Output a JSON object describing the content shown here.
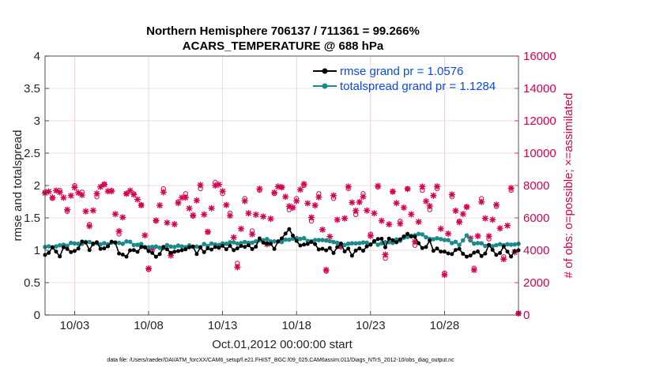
{
  "titles": {
    "line1": "Northern Hemisphere 706137 / 711361 = 99.266%",
    "line2": "ACARS_TEMPERATURE @ 688 hPa"
  },
  "axes": {
    "ylabel_left": "rmse and totalspread",
    "ylabel_right": "# of obs: o=possible; ×=assimilated",
    "xlabel": "Oct.01,2012 00:00:00 start"
  },
  "footer": "data file: /Users/raeder/DAI/ATM_forcXX/CAM6_setup/f.e21.FHIST_BGC.f09_025.CAM6assim.011/Diags_NTrS_2012-10/obs_diag_output.nc",
  "colors": {
    "rmse": "#000000",
    "spread": "#1a8a8a",
    "obs": "#d6004f",
    "legend_text": "#0a4be0",
    "grid": "#e6b8c8"
  },
  "chart_data": {
    "type": "line",
    "title": "Northern Hemisphere 706137 / 711361 = 99.266% / ACARS_TEMPERATURE @ 688 hPa",
    "xlabel": "Oct.01,2012 00:00:00 start",
    "ylabel": "rmse and totalspread",
    "y2label": "# of obs: o=possible; ×=assimilated",
    "x_ticks": [
      "10/03",
      "10/08",
      "10/13",
      "10/18",
      "10/23",
      "10/28"
    ],
    "x_tick_days": [
      3,
      8,
      13,
      18,
      23,
      28
    ],
    "xlim_days": [
      1,
      33
    ],
    "ylim": [
      0,
      4
    ],
    "y_ticks": [
      "0",
      "0.5",
      "1",
      "1.5",
      "2",
      "2.5",
      "3",
      "3.5",
      "4"
    ],
    "y2lim": [
      0,
      16000
    ],
    "y2_ticks": [
      "0",
      "2000",
      "4000",
      "6000",
      "8000",
      "10000",
      "12000",
      "14000",
      "16000"
    ],
    "grid": true,
    "legend_position": "top-right",
    "legend": [
      "rmse grand pr = 1.0576",
      "totalspread grand pr = 1.1284"
    ],
    "series": [
      {
        "name": "rmse grand pr = 1.0576",
        "axis": "left",
        "anchors": [
          [
            1,
            0.9
          ],
          [
            1.5,
            1.0
          ],
          [
            2,
            0.95
          ],
          [
            2.5,
            1.05
          ],
          [
            3,
            1.0
          ],
          [
            3.5,
            1.1
          ],
          [
            4,
            1.05
          ],
          [
            4.5,
            1.1
          ],
          [
            5,
            1.05
          ],
          [
            5.5,
            1.12
          ],
          [
            6,
            1.0
          ],
          [
            6.5,
            0.95
          ],
          [
            7,
            1.05
          ],
          [
            7.5,
            1.0
          ],
          [
            8,
            1.0
          ],
          [
            8.5,
            0.85
          ],
          [
            9,
            1.05
          ],
          [
            9.5,
            0.95
          ],
          [
            10,
            1.0
          ],
          [
            10.5,
            1.05
          ],
          [
            11,
            1.0
          ],
          [
            11.5,
            1.0
          ],
          [
            12,
            1.05
          ],
          [
            12.5,
            1.0
          ],
          [
            13,
            1.05
          ],
          [
            13.5,
            1.1
          ],
          [
            14,
            1.0
          ],
          [
            14.5,
            1.1
          ],
          [
            15,
            1.05
          ],
          [
            15.5,
            1.15
          ],
          [
            16,
            1.1
          ],
          [
            16.5,
            1.0
          ],
          [
            17,
            1.2
          ],
          [
            17.5,
            1.35
          ],
          [
            18,
            1.1
          ],
          [
            18.5,
            1.05
          ],
          [
            19,
            1.1
          ],
          [
            19.5,
            1.05
          ],
          [
            20,
            1.0
          ],
          [
            20.5,
            1.0
          ],
          [
            21,
            1.05
          ],
          [
            21.5,
            1.0
          ],
          [
            22,
            0.95
          ],
          [
            22.5,
            1.0
          ],
          [
            23,
            1.05
          ],
          [
            23.5,
            1.2
          ],
          [
            24,
            1.1
          ],
          [
            24.5,
            1.2
          ],
          [
            25,
            1.15
          ],
          [
            25.5,
            1.3
          ],
          [
            26,
            1.15
          ],
          [
            26.5,
            1.05
          ],
          [
            27,
            1.1
          ],
          [
            27.5,
            1.0
          ],
          [
            28,
            0.95
          ],
          [
            28.5,
            0.9
          ],
          [
            29,
            1.0
          ],
          [
            29.5,
            0.95
          ],
          [
            30,
            1.0
          ],
          [
            30.5,
            0.95
          ],
          [
            31,
            1.05
          ],
          [
            31.5,
            0.95
          ],
          [
            32,
            1.05
          ],
          [
            32.5,
            0.95
          ],
          [
            33,
            1.0
          ]
        ]
      },
      {
        "name": "totalspread grand pr = 1.1284",
        "axis": "left",
        "anchors": [
          [
            1,
            1.05
          ],
          [
            2,
            1.08
          ],
          [
            3,
            1.1
          ],
          [
            4,
            1.12
          ],
          [
            5,
            1.1
          ],
          [
            6,
            1.13
          ],
          [
            7,
            1.1
          ],
          [
            8,
            1.05
          ],
          [
            9,
            1.05
          ],
          [
            10,
            1.07
          ],
          [
            11,
            1.06
          ],
          [
            12,
            1.08
          ],
          [
            13,
            1.1
          ],
          [
            14,
            1.12
          ],
          [
            15,
            1.14
          ],
          [
            16,
            1.15
          ],
          [
            17,
            1.13
          ],
          [
            18,
            1.2
          ],
          [
            19,
            1.15
          ],
          [
            20,
            1.13
          ],
          [
            21,
            1.1
          ],
          [
            22,
            1.12
          ],
          [
            23,
            1.1
          ],
          [
            24,
            1.12
          ],
          [
            25,
            1.15
          ],
          [
            26,
            1.25
          ],
          [
            27,
            1.2
          ],
          [
            28,
            1.15
          ],
          [
            29,
            1.1
          ],
          [
            29.5,
            1.25
          ],
          [
            30,
            1.1
          ],
          [
            31,
            1.08
          ],
          [
            32,
            1.1
          ],
          [
            33,
            1.1
          ]
        ]
      },
      {
        "name": "obs",
        "axis": "right",
        "anchors": [
          [
            1,
            7600
          ],
          [
            1.5,
            7200
          ],
          [
            2,
            7700
          ],
          [
            2.5,
            6400
          ],
          [
            3,
            8000
          ],
          [
            3.5,
            7600
          ],
          [
            4,
            5600
          ],
          [
            4.5,
            7300
          ],
          [
            5,
            8100
          ],
          [
            5.5,
            7700
          ],
          [
            6,
            5000
          ],
          [
            6.5,
            7500
          ],
          [
            7,
            7500
          ],
          [
            7.5,
            6800
          ],
          [
            8,
            2800
          ],
          [
            8.5,
            5800
          ],
          [
            9,
            7800
          ],
          [
            9.5,
            3800
          ],
          [
            10,
            7000
          ],
          [
            10.5,
            7500
          ],
          [
            11,
            6100
          ],
          [
            11.5,
            7800
          ],
          [
            12,
            5100
          ],
          [
            12.5,
            8200
          ],
          [
            13,
            7500
          ],
          [
            13.5,
            6300
          ],
          [
            14,
            3200
          ],
          [
            14.5,
            7200
          ],
          [
            15,
            5200
          ],
          [
            15.5,
            7700
          ],
          [
            16,
            4400
          ],
          [
            16.5,
            7500
          ],
          [
            17,
            7900
          ],
          [
            17.5,
            6500
          ],
          [
            18,
            7200
          ],
          [
            18.5,
            8000
          ],
          [
            19,
            5800
          ],
          [
            19.5,
            7500
          ],
          [
            20,
            2700
          ],
          [
            20.5,
            7200
          ],
          [
            21,
            4200
          ],
          [
            21.5,
            7800
          ],
          [
            22,
            6200
          ],
          [
            22.5,
            7500
          ],
          [
            23,
            5000
          ],
          [
            23.5,
            7900
          ],
          [
            24,
            3500
          ],
          [
            24.5,
            7600
          ],
          [
            25,
            5800
          ],
          [
            25.5,
            7800
          ],
          [
            26,
            4300
          ],
          [
            26.5,
            7700
          ],
          [
            27,
            6500
          ],
          [
            27.5,
            7800
          ],
          [
            28,
            2600
          ],
          [
            28.5,
            7300
          ],
          [
            29,
            5800
          ],
          [
            29.5,
            6700
          ],
          [
            30,
            2900
          ],
          [
            30.5,
            7200
          ],
          [
            31,
            4700
          ],
          [
            31.5,
            6700
          ],
          [
            32,
            3600
          ],
          [
            32.5,
            7700
          ],
          [
            33,
            100
          ]
        ]
      }
    ]
  }
}
